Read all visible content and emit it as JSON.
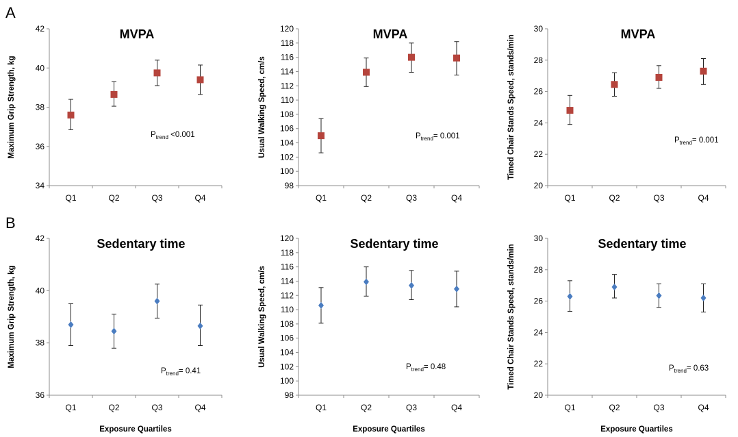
{
  "panel_labels": [
    "A",
    "B"
  ],
  "x_axis_label": "Exposure Quartiles",
  "chart_data": [
    {
      "type": "scatter",
      "row": 0,
      "col": 0,
      "title": "MVPA",
      "ylabel": "Maximum Grip Strength, kg",
      "ylim": [
        34,
        42
      ],
      "yticks": [
        34,
        36,
        38,
        40,
        42
      ],
      "categories": [
        "Q1",
        "Q2",
        "Q3",
        "Q4"
      ],
      "values": [
        37.6,
        38.65,
        39.75,
        39.4
      ],
      "err_low": [
        36.85,
        38.05,
        39.1,
        38.65
      ],
      "err_high": [
        38.4,
        39.3,
        40.4,
        40.15
      ],
      "marker": "square",
      "color": "#b5443c",
      "p_trend_label": "P",
      "p_trend_sub": "trend",
      "p_trend_text": " <0.001"
    },
    {
      "type": "scatter",
      "row": 0,
      "col": 1,
      "title": "MVPA",
      "ylabel": "Usual Walking Speed, cm/s",
      "ylim": [
        98,
        120
      ],
      "yticks": [
        98,
        100,
        102,
        104,
        106,
        108,
        110,
        112,
        114,
        116,
        118,
        120
      ],
      "categories": [
        "Q1",
        "Q2",
        "Q3",
        "Q4"
      ],
      "values": [
        105.0,
        113.9,
        116.0,
        115.9
      ],
      "err_low": [
        102.6,
        111.9,
        113.9,
        113.5
      ],
      "err_high": [
        107.4,
        115.9,
        118.0,
        118.2
      ],
      "marker": "square",
      "color": "#b5443c",
      "p_trend_label": "P",
      "p_trend_sub": "trend",
      "p_trend_text": "= 0.001"
    },
    {
      "type": "scatter",
      "row": 0,
      "col": 2,
      "title": "MVPA",
      "ylabel": "Timed Chair Stands Speed, stands/min",
      "ylim": [
        20,
        30
      ],
      "yticks": [
        20,
        22,
        24,
        26,
        28,
        30
      ],
      "categories": [
        "Q1",
        "Q2",
        "Q3",
        "Q4"
      ],
      "values": [
        24.8,
        26.45,
        26.9,
        27.3
      ],
      "err_low": [
        23.9,
        25.7,
        26.2,
        26.45
      ],
      "err_high": [
        25.75,
        27.2,
        27.65,
        28.1
      ],
      "marker": "square",
      "color": "#b5443c",
      "p_trend_label": "P",
      "p_trend_sub": "trend",
      "p_trend_text": "= 0.001"
    },
    {
      "type": "scatter",
      "row": 1,
      "col": 0,
      "title": "Sedentary time",
      "ylabel": "Maximum Grip Strength, kg",
      "ylim": [
        36,
        42
      ],
      "yticks": [
        36,
        38,
        40,
        42
      ],
      "categories": [
        "Q1",
        "Q2",
        "Q3",
        "Q4"
      ],
      "values": [
        38.7,
        38.45,
        39.6,
        38.65
      ],
      "err_low": [
        37.9,
        37.8,
        38.95,
        37.9
      ],
      "err_high": [
        39.5,
        39.1,
        40.25,
        39.45
      ],
      "marker": "diamond",
      "color": "#4a7cc0",
      "p_trend_label": "P",
      "p_trend_sub": "trend",
      "p_trend_text": "= 0.41"
    },
    {
      "type": "scatter",
      "row": 1,
      "col": 1,
      "title": "Sedentary time",
      "ylabel": "Usual Walking Speed, cm/s",
      "ylim": [
        98,
        120
      ],
      "yticks": [
        98,
        100,
        102,
        104,
        106,
        108,
        110,
        112,
        114,
        116,
        118,
        120
      ],
      "categories": [
        "Q1",
        "Q2",
        "Q3",
        "Q4"
      ],
      "values": [
        110.6,
        113.9,
        113.4,
        112.9
      ],
      "err_low": [
        108.1,
        111.9,
        111.4,
        110.4
      ],
      "err_high": [
        113.1,
        116.0,
        115.5,
        115.4
      ],
      "marker": "diamond",
      "color": "#4a7cc0",
      "p_trend_label": "P",
      "p_trend_sub": "trend",
      "p_trend_text": "= 0.48"
    },
    {
      "type": "scatter",
      "row": 1,
      "col": 2,
      "title": "Sedentary time",
      "ylabel": "Timed Chair Stands Speed, stands/min",
      "ylim": [
        20,
        30
      ],
      "yticks": [
        20,
        22,
        24,
        26,
        28,
        30
      ],
      "categories": [
        "Q1",
        "Q2",
        "Q3",
        "Q4"
      ],
      "values": [
        26.3,
        26.9,
        26.35,
        26.2
      ],
      "err_low": [
        25.35,
        26.2,
        25.6,
        25.3
      ],
      "err_high": [
        27.3,
        27.7,
        27.1,
        27.1
      ],
      "marker": "diamond",
      "color": "#4a7cc0",
      "p_trend_label": "P",
      "p_trend_sub": "trend",
      "p_trend_text": "= 0.63"
    }
  ]
}
